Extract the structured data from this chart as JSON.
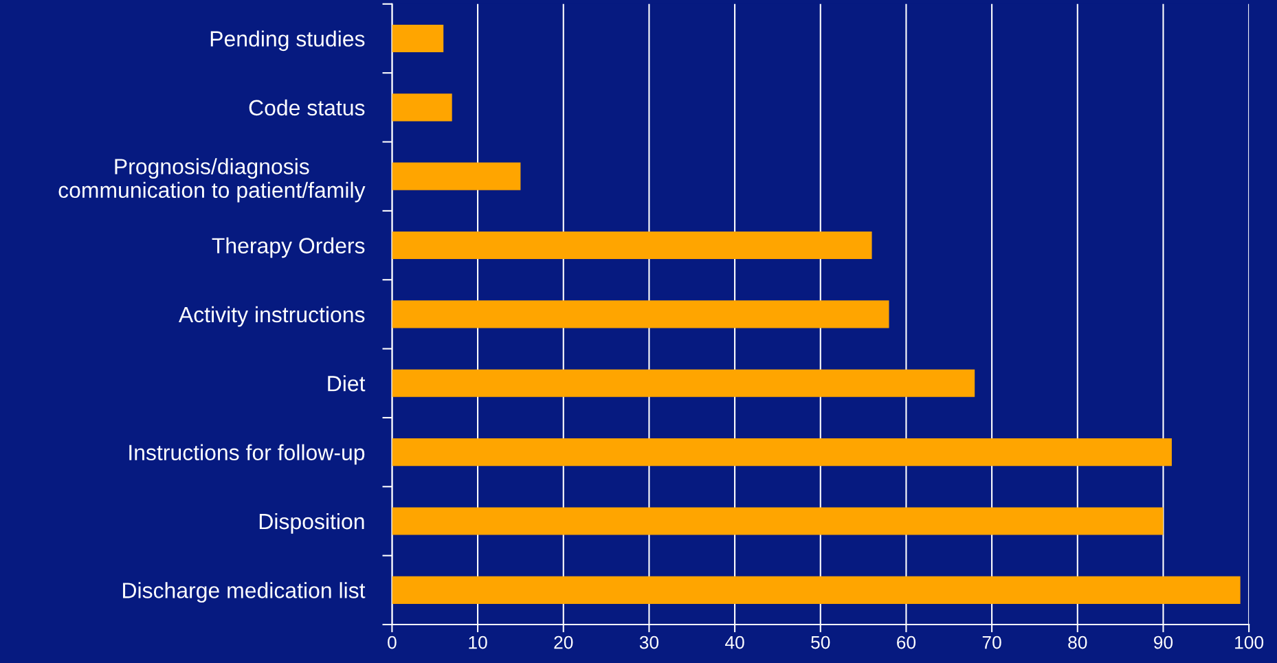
{
  "chart_data": {
    "type": "bar",
    "orientation": "horizontal",
    "categories": [
      "Pending studies",
      "Code status",
      "Prognosis/diagnosis\ncommunication to patient/family",
      "Therapy Orders",
      "Activity instructions",
      "Diet",
      "Instructions for follow-up",
      "Disposition",
      "Discharge medication list"
    ],
    "values": [
      6,
      7,
      15,
      56,
      58,
      68,
      91,
      90,
      99
    ],
    "color": "#ffa500",
    "xlim": [
      0,
      100
    ],
    "xticks": [
      0,
      10,
      20,
      30,
      40,
      50,
      60,
      70,
      80,
      90,
      100
    ],
    "grid": "x",
    "legend": false
  }
}
